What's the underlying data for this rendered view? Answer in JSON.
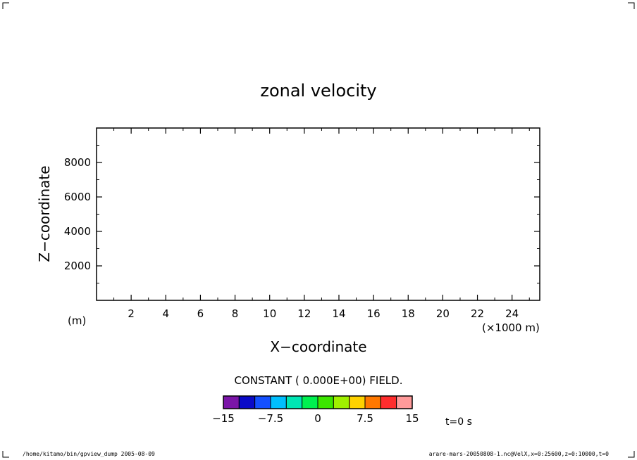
{
  "chart_data": {
    "type": "heatmap",
    "title": "zonal velocity",
    "xlabel": "X−coordinate",
    "ylabel": "Z−coordinate",
    "x_unit": "(×1000 m)",
    "y_unit": "(m)",
    "xlim": [
      0,
      25600
    ],
    "ylim": [
      0,
      10000
    ],
    "x_ticks": [
      2000,
      4000,
      6000,
      8000,
      10000,
      12000,
      14000,
      16000,
      18000,
      20000,
      22000,
      24000
    ],
    "x_tick_labels": [
      "2",
      "4",
      "6",
      "8",
      "10",
      "12",
      "14",
      "16",
      "18",
      "20",
      "22",
      "24"
    ],
    "y_ticks": [
      2000,
      4000,
      6000,
      8000
    ],
    "y_tick_labels": [
      "2000",
      "4000",
      "6000",
      "8000"
    ],
    "field_message": "CONSTANT ( 0.000E+00) FIELD.",
    "colorbar": {
      "range": [
        -15,
        15
      ],
      "levels": 12,
      "colors": [
        "#7b15a8",
        "#0a0ac8",
        "#1450ff",
        "#00bfff",
        "#00e6b4",
        "#00f050",
        "#3ce600",
        "#a0f000",
        "#ffd200",
        "#ff7800",
        "#ff2d2d",
        "#ff9a9a"
      ],
      "tick_values": [
        -15,
        -7.5,
        0,
        7.5,
        15
      ],
      "tick_labels": [
        "−15",
        "−7.5",
        "0",
        "7.5",
        "15"
      ]
    }
  },
  "time_label": "t=0 s",
  "footer_left": "/home/kitamo/bin/gpview_dump  2005-08-09",
  "footer_right": "arare-mars-20050808-1.nc@VelX,x=0:25600,z=0:10000,t=0"
}
